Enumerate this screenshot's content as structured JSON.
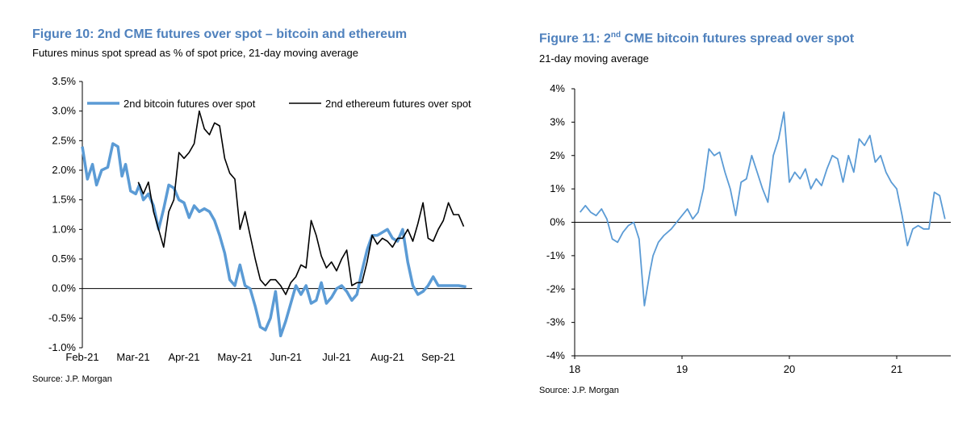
{
  "figures": [
    {
      "title": "Figure 10: 2nd CME futures over spot – bitcoin and ethereum",
      "subtitle": "Futures minus spot spread as % of spot price, 21-day moving average",
      "source": "Source: J.P. Morgan"
    },
    {
      "title_prefix": "Figure 11: 2",
      "title_sup": "nd",
      "title_suffix": " CME bitcoin futures spread over spot",
      "subtitle": "21-day moving average",
      "source": "Source: J.P. Morgan"
    }
  ],
  "chart_data": [
    {
      "type": "line",
      "title": "Figure 10: 2nd CME futures over spot – bitcoin and ethereum",
      "subtitle": "Futures minus spot spread as % of spot price, 21-day moving average",
      "ylim": [
        -1.0,
        3.5
      ],
      "yticks": [
        "3.5%",
        "3.0%",
        "2.5%",
        "2.0%",
        "1.5%",
        "1.0%",
        "0.5%",
        "0.0%",
        "-0.5%",
        "-1.0%"
      ],
      "xlim": [
        0,
        7.6
      ],
      "xticks": [
        "Feb-21",
        "Mar-21",
        "Apr-21",
        "May-21",
        "Jun-21",
        "Jul-21",
        "Aug-21",
        "Sep-21"
      ],
      "legend_position": "top",
      "grid": false,
      "series": [
        {
          "name": "2nd bitcoin futures over spot",
          "color": "#5b9bd5",
          "x": [
            0,
            0.1,
            0.2,
            0.28,
            0.38,
            0.5,
            0.6,
            0.7,
            0.78,
            0.85,
            0.95,
            1.05,
            1.12,
            1.2,
            1.3,
            1.4,
            1.5,
            1.6,
            1.7,
            1.8,
            1.9,
            2.0,
            2.1,
            2.2,
            2.3,
            2.4,
            2.5,
            2.6,
            2.7,
            2.8,
            2.9,
            3.0,
            3.1,
            3.2,
            3.3,
            3.4,
            3.5,
            3.6,
            3.7,
            3.8,
            3.9,
            4.0,
            4.1,
            4.2,
            4.3,
            4.4,
            4.5,
            4.6,
            4.7,
            4.8,
            4.9,
            5.0,
            5.1,
            5.2,
            5.3,
            5.4,
            5.5,
            5.6,
            5.7,
            5.8,
            5.9,
            6.0,
            6.1,
            6.2,
            6.3,
            6.4,
            6.5,
            6.6,
            6.7,
            6.8,
            6.9,
            7.0,
            7.1,
            7.2,
            7.3,
            7.4,
            7.55
          ],
          "values": [
            2.4,
            1.85,
            2.1,
            1.75,
            2.0,
            2.05,
            2.45,
            2.4,
            1.9,
            2.1,
            1.65,
            1.6,
            1.75,
            1.5,
            1.6,
            1.4,
            1.0,
            1.35,
            1.75,
            1.7,
            1.5,
            1.45,
            1.2,
            1.4,
            1.3,
            1.35,
            1.3,
            1.15,
            0.9,
            0.6,
            0.15,
            0.05,
            0.4,
            0.05,
            0.0,
            -0.3,
            -0.65,
            -0.7,
            -0.5,
            -0.05,
            -0.8,
            -0.55,
            -0.25,
            0.05,
            -0.1,
            0.05,
            -0.25,
            -0.2,
            0.1,
            -0.25,
            -0.15,
            0.0,
            0.05,
            -0.05,
            -0.2,
            -0.1,
            0.3,
            0.65,
            0.9,
            0.9,
            0.95,
            1.0,
            0.85,
            0.8,
            1.0,
            0.45,
            0.05,
            -0.1,
            -0.05,
            0.05,
            0.2,
            0.05,
            0.05,
            0.05,
            0.05,
            0.05,
            0.03
          ]
        },
        {
          "name": "2nd ethereum futures over spot",
          "color": "#000000",
          "x": [
            1.1,
            1.2,
            1.3,
            1.4,
            1.5,
            1.6,
            1.7,
            1.8,
            1.9,
            2.0,
            2.1,
            2.2,
            2.3,
            2.4,
            2.5,
            2.6,
            2.7,
            2.8,
            2.9,
            3.0,
            3.1,
            3.2,
            3.3,
            3.4,
            3.5,
            3.6,
            3.7,
            3.8,
            3.9,
            4.0,
            4.1,
            4.2,
            4.3,
            4.4,
            4.5,
            4.6,
            4.7,
            4.8,
            4.9,
            5.0,
            5.1,
            5.2,
            5.3,
            5.4,
            5.5,
            5.6,
            5.7,
            5.8,
            5.9,
            6.0,
            6.1,
            6.2,
            6.3,
            6.4,
            6.5,
            6.6,
            6.7,
            6.8,
            6.9,
            7.0,
            7.1,
            7.2,
            7.3,
            7.4,
            7.5
          ],
          "values": [
            1.8,
            1.6,
            1.8,
            1.3,
            1.0,
            0.7,
            1.3,
            1.5,
            2.3,
            2.2,
            2.3,
            2.45,
            3.0,
            2.7,
            2.6,
            2.8,
            2.75,
            2.2,
            1.95,
            1.85,
            1.0,
            1.3,
            0.9,
            0.5,
            0.15,
            0.05,
            0.15,
            0.15,
            0.05,
            -0.1,
            0.1,
            0.2,
            0.4,
            0.35,
            1.15,
            0.9,
            0.55,
            0.35,
            0.45,
            0.3,
            0.5,
            0.65,
            0.05,
            0.1,
            0.1,
            0.45,
            0.9,
            0.75,
            0.85,
            0.8,
            0.7,
            0.85,
            0.85,
            1.0,
            0.8,
            1.1,
            1.45,
            0.85,
            0.8,
            1.0,
            1.15,
            1.45,
            1.25,
            1.25,
            1.05
          ]
        }
      ]
    },
    {
      "type": "line",
      "title": "Figure 11: 2nd CME bitcoin futures spread over spot",
      "subtitle": "21-day moving average",
      "ylim": [
        -4,
        4
      ],
      "yticks": [
        "4%",
        "3%",
        "2%",
        "1%",
        "0%",
        "-1%",
        "-2%",
        "-3%",
        "-4%"
      ],
      "xlim": [
        18,
        21.45
      ],
      "xticks": [
        "18",
        "19",
        "20",
        "21"
      ],
      "grid": false,
      "series": [
        {
          "name": "",
          "color": "#5b9bd5",
          "x": [
            18.05,
            18.1,
            18.15,
            18.2,
            18.25,
            18.3,
            18.35,
            18.4,
            18.45,
            18.5,
            18.55,
            18.6,
            18.65,
            18.7,
            18.73,
            18.78,
            18.83,
            18.9,
            18.95,
            19.0,
            19.05,
            19.1,
            19.15,
            19.2,
            19.25,
            19.3,
            19.35,
            19.4,
            19.45,
            19.5,
            19.55,
            19.6,
            19.65,
            19.7,
            19.75,
            19.8,
            19.85,
            19.9,
            19.95,
            20.0,
            20.05,
            20.1,
            20.15,
            20.2,
            20.25,
            20.3,
            20.35,
            20.4,
            20.45,
            20.5,
            20.55,
            20.6,
            20.65,
            20.7,
            20.75,
            20.8,
            20.85,
            20.9,
            20.95,
            21.0,
            21.05,
            21.1,
            21.15,
            21.2,
            21.25,
            21.3,
            21.35,
            21.4,
            21.45
          ],
          "values": [
            0.3,
            0.5,
            0.3,
            0.2,
            0.4,
            0.1,
            -0.5,
            -0.6,
            -0.3,
            -0.1,
            0.0,
            -0.5,
            -2.5,
            -1.5,
            -1.0,
            -0.6,
            -0.4,
            -0.2,
            0.0,
            0.2,
            0.4,
            0.1,
            0.3,
            1.0,
            2.2,
            2.0,
            2.1,
            1.5,
            1.0,
            0.2,
            1.2,
            1.3,
            2.0,
            1.5,
            1.0,
            0.6,
            2.0,
            2.5,
            3.3,
            1.2,
            1.5,
            1.3,
            1.6,
            1.0,
            1.3,
            1.1,
            1.6,
            2.0,
            1.9,
            1.2,
            2.0,
            1.5,
            2.5,
            2.3,
            2.6,
            1.8,
            2.0,
            1.5,
            1.2,
            1.0,
            0.2,
            -0.7,
            -0.2,
            -0.1,
            -0.2,
            -0.2,
            0.9,
            0.8,
            0.1
          ]
        }
      ]
    }
  ]
}
